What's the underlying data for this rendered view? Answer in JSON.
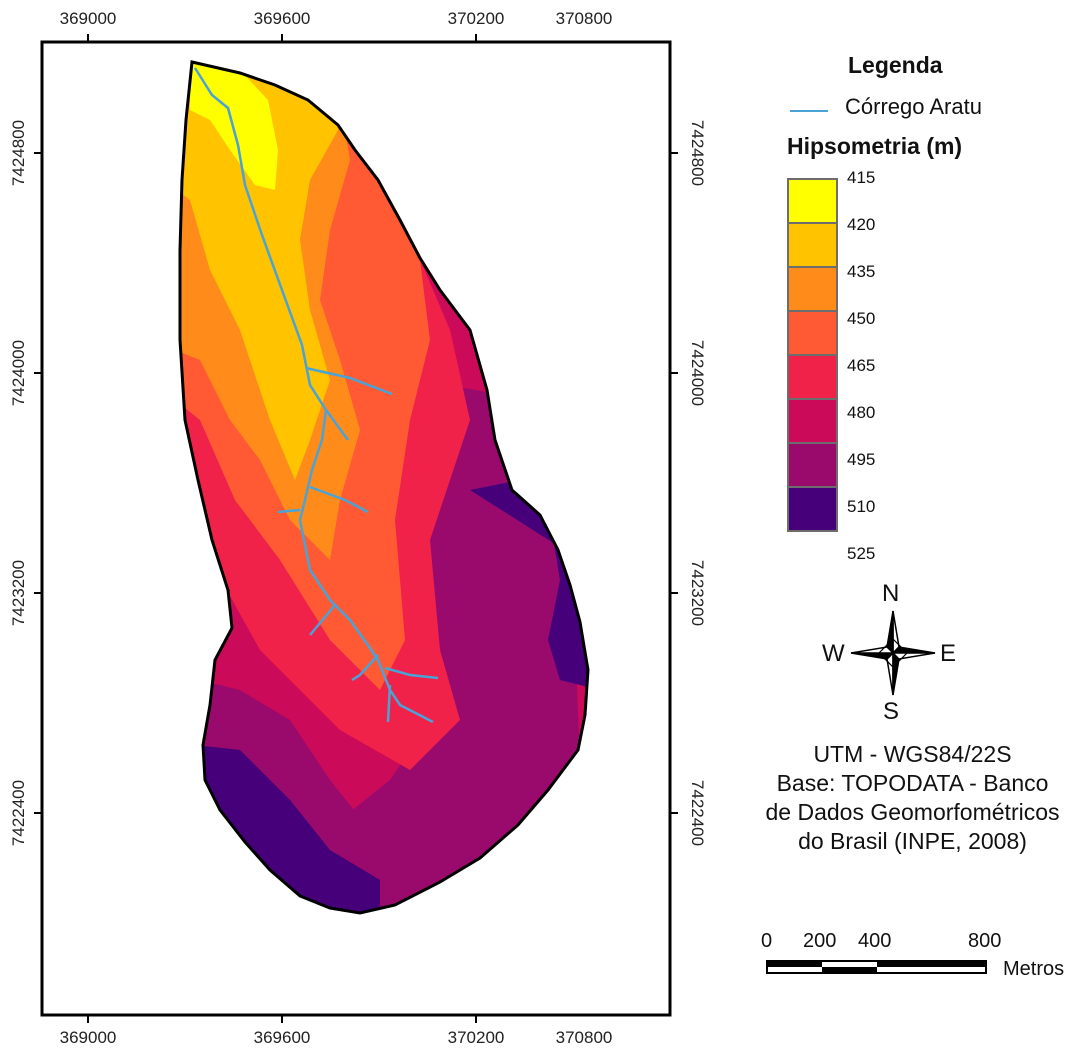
{
  "map": {
    "axis_ticks": {
      "x_labels": [
        "369000",
        "369600",
        "370200",
        "370800"
      ],
      "y_labels": [
        "7424800",
        "7424000",
        "7423200",
        "7422400"
      ]
    }
  },
  "legend": {
    "title": "Legenda",
    "stream_label": "Córrego Aratu",
    "stream_color": "#4aa3d6",
    "hypsometry_title": "Hipsometria (m)",
    "hypsometry_labels": [
      "415",
      "420",
      "435",
      "450",
      "465",
      "480",
      "495",
      "510",
      "525"
    ],
    "hypsometry_colors": [
      "#ffff00",
      "#ffc300",
      "#ff8c1a",
      "#ff5a33",
      "#f0224a",
      "#cc0a5a",
      "#990a6c",
      "#45007a"
    ]
  },
  "compass": {
    "north": "N",
    "south": "S",
    "east": "E",
    "west": "W"
  },
  "info": {
    "line1": "UTM - WGS84/22S",
    "line2": "Base: TOPODATA - Banco",
    "line3": "de Dados Geomorfométricos",
    "line4": "do Brasil (INPE, 2008)"
  },
  "scale_bar": {
    "labels": [
      "0",
      "200",
      "400",
      "800"
    ],
    "unit": "Metros"
  }
}
